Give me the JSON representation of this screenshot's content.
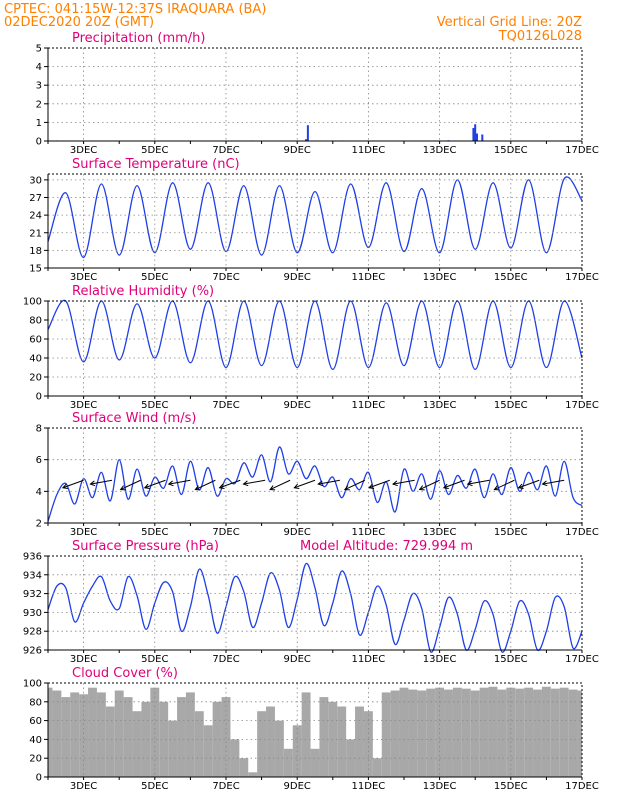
{
  "header": {
    "line1": "CPTEC:   041:15W-12:37S   IRAQUARA (BA)",
    "line2": "02DEC2020 20Z (GMT)",
    "grid_note": "Vertical Grid Line: 20Z",
    "code": "TQ0126L028"
  },
  "x_ticks": [
    "3DEC",
    "5DEC",
    "7DEC",
    "9DEC",
    "11DEC",
    "13DEC",
    "15DEC",
    "17DEC"
  ],
  "colors": {
    "header": "#ff8000",
    "title": "#e0007a",
    "line": "#1f3fe6",
    "cloud": "#a8a8a8",
    "grid": "#888888"
  },
  "chart_data": [
    {
      "type": "bar",
      "title": "Precipitation (mm/h)",
      "x_range_days": [
        2.0,
        17.0
      ],
      "ylim": [
        0,
        5
      ],
      "yticks": [
        0,
        1,
        2,
        3,
        4,
        5
      ],
      "x": [
        2.25,
        4.25,
        7.75,
        9.25,
        9.3,
        10.25,
        13.25,
        13.95,
        14.0,
        14.05,
        14.2
      ],
      "values": [
        0.03,
        0.02,
        0.03,
        0.1,
        0.85,
        0.03,
        0.04,
        0.7,
        0.9,
        0.4,
        0.35
      ]
    },
    {
      "type": "line",
      "title": "Surface Temperature (nC)",
      "x_range_days": [
        2.0,
        17.0
      ],
      "ylim": [
        15,
        31
      ],
      "yticks": [
        15,
        18,
        21,
        24,
        27,
        30
      ],
      "x_start_day": 2.0,
      "x_step_days": 0.5,
      "values": [
        19.5,
        27.8,
        16.8,
        29.3,
        17.2,
        29.0,
        17.6,
        29.5,
        18.2,
        29.5,
        17.8,
        29.0,
        17.2,
        29.0,
        17.6,
        28.0,
        17.6,
        29.3,
        18.5,
        29.5,
        17.8,
        28.5,
        17.6,
        30.0,
        18.2,
        29.5,
        18.4,
        30.0,
        17.6,
        30.2,
        26.5
      ]
    },
    {
      "type": "line",
      "title": "Relative Humidity (%)",
      "x_range_days": [
        2.0,
        17.0
      ],
      "ylim": [
        0,
        100
      ],
      "yticks": [
        0,
        20,
        40,
        60,
        80,
        100
      ],
      "x_start_day": 2.0,
      "x_step_days": 0.5,
      "values": [
        70,
        100,
        36,
        100,
        38,
        97,
        40,
        100,
        35,
        100,
        30,
        100,
        32,
        100,
        30,
        100,
        28,
        100,
        30,
        98,
        32,
        100,
        30,
        100,
        28,
        100,
        30,
        100,
        30,
        100,
        40
      ]
    },
    {
      "type": "line",
      "title": "Surface Wind (m/s)",
      "x_range_days": [
        2.0,
        17.0
      ],
      "ylim": [
        2,
        8
      ],
      "yticks": [
        2,
        4,
        6,
        8
      ],
      "x_start_day": 2.0,
      "x_step_days": 0.25,
      "values": [
        2.1,
        3.8,
        4.5,
        3.2,
        4.8,
        3.6,
        5.2,
        3.4,
        6.0,
        3.5,
        5.4,
        3.7,
        4.9,
        4.2,
        5.6,
        3.8,
        5.9,
        4.1,
        5.5,
        3.7,
        4.8,
        4.5,
        5.8,
        4.9,
        6.3,
        4.6,
        6.8,
        5.1,
        5.9,
        4.8,
        5.6,
        4.3,
        4.9,
        3.6,
        4.8,
        4.1,
        5.2,
        3.3,
        4.6,
        2.7,
        5.4,
        4.0,
        5.1,
        3.5,
        5.3,
        3.8,
        5.0,
        4.2,
        5.4,
        3.6,
        5.1,
        3.8,
        5.5,
        4.0,
        5.2,
        4.1,
        5.6,
        3.7,
        5.9,
        3.6,
        3.1
      ],
      "barbs_x": [
        3.0,
        3.8,
        4.6,
        5.3,
        6.0,
        6.7,
        7.4,
        8.1,
        8.8,
        9.5,
        10.2,
        10.9,
        11.6,
        12.3,
        13.0,
        13.7,
        14.4,
        15.1,
        15.8,
        16.5
      ]
    },
    {
      "type": "line",
      "title": "Surface Pressure (hPa)",
      "annotation": "Model Altitude: 729.994 m",
      "x_range_days": [
        2.0,
        17.0
      ],
      "ylim": [
        926,
        936
      ],
      "yticks": [
        926,
        928,
        930,
        932,
        934,
        936
      ],
      "x_start_day": 2.0,
      "x_step_days": 0.25,
      "values": [
        930.3,
        932.8,
        932.6,
        929.0,
        931.0,
        932.8,
        933.8,
        931.2,
        930.4,
        933.8,
        931.8,
        928.2,
        931.0,
        933.2,
        932.2,
        928.0,
        930.6,
        934.6,
        931.8,
        927.8,
        930.6,
        933.8,
        932.2,
        928.4,
        931.0,
        934.2,
        932.4,
        928.4,
        931.4,
        935.2,
        932.6,
        928.6,
        931.0,
        934.4,
        932.0,
        927.6,
        930.0,
        932.8,
        930.8,
        926.6,
        929.2,
        932.0,
        930.4,
        925.8,
        928.4,
        931.6,
        929.8,
        926.0,
        928.2,
        931.2,
        929.8,
        925.8,
        928.0,
        931.2,
        929.8,
        926.0,
        928.0,
        931.6,
        930.6,
        926.2,
        928.0
      ]
    },
    {
      "type": "bar",
      "title": "Cloud Cover (%)",
      "x_range_days": [
        2.0,
        17.0
      ],
      "ylim": [
        0,
        100
      ],
      "yticks": [
        0,
        20,
        40,
        60,
        80,
        100
      ],
      "x_start_day": 2.0,
      "x_step_days": 0.25,
      "values": [
        95,
        92,
        85,
        90,
        88,
        95,
        90,
        75,
        92,
        85,
        70,
        80,
        95,
        80,
        60,
        85,
        90,
        70,
        55,
        80,
        85,
        40,
        20,
        5,
        70,
        75,
        60,
        30,
        55,
        90,
        30,
        85,
        80,
        75,
        40,
        75,
        70,
        20,
        90,
        92,
        95,
        93,
        92,
        94,
        95,
        93,
        95,
        94,
        92,
        95,
        96,
        93,
        95,
        94,
        95,
        93,
        96,
        94,
        95,
        93,
        92
      ]
    }
  ]
}
